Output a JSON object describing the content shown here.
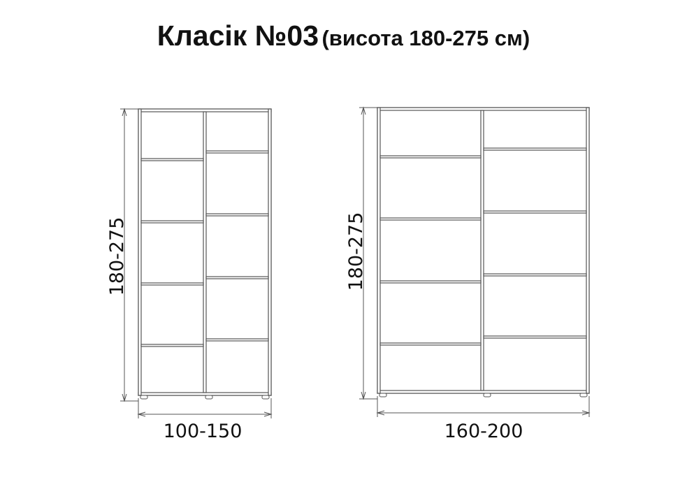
{
  "title": {
    "main": "Класік №03",
    "sub": "(висота 180-275 см)"
  },
  "wardrobes": [
    {
      "name": "narrow",
      "height_label": "180-275",
      "width_label": "100-150"
    },
    {
      "name": "wide",
      "height_label": "180-275",
      "width_label": "160-200"
    }
  ],
  "colors": {
    "line": "#555555",
    "text": "#111111"
  }
}
